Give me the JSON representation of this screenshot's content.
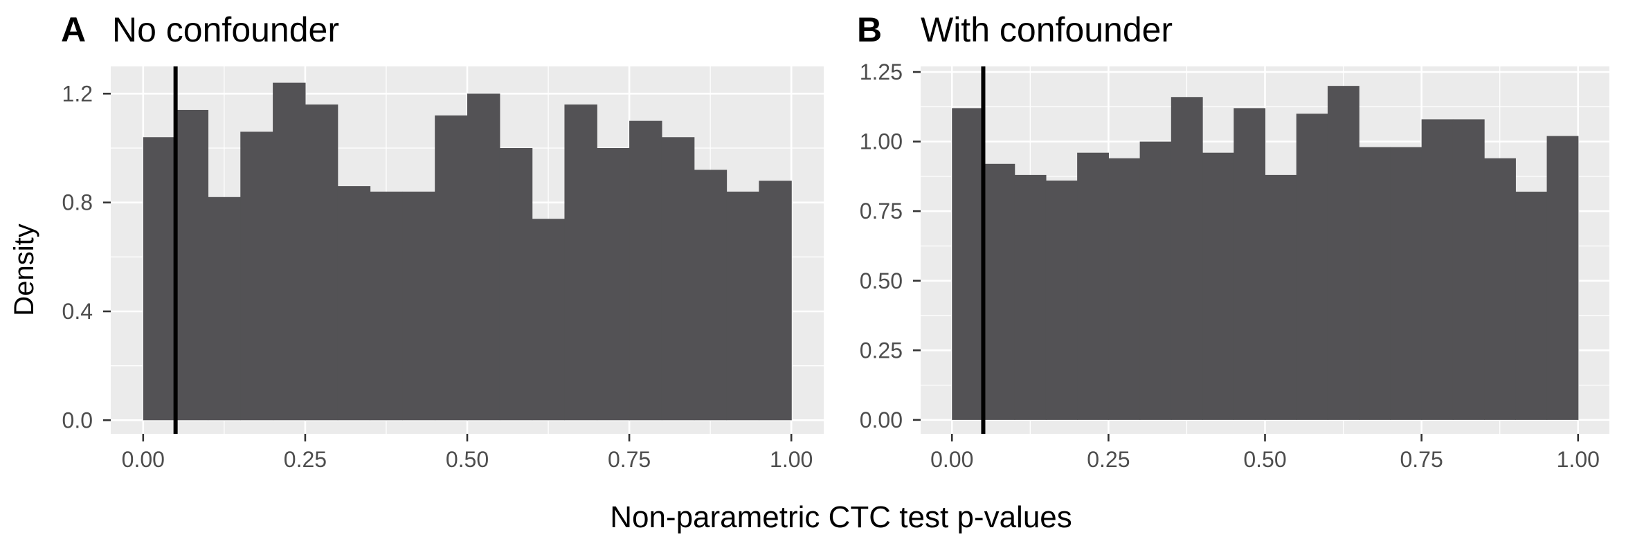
{
  "figure": {
    "xlabel": "Non-parametric CTC test p-values",
    "ylabel": "Density"
  },
  "chart_data": [
    {
      "type": "bar",
      "tag": "A",
      "title": "No confounder",
      "xlabel": "Non-parametric CTC test p-values",
      "ylabel": "Density",
      "xlim": [
        -0.05,
        1.05
      ],
      "ylim": [
        -0.05,
        1.3
      ],
      "bin_width": 0.05,
      "bin_starts": [
        0.0,
        0.05,
        0.1,
        0.15,
        0.2,
        0.25,
        0.3,
        0.35,
        0.4,
        0.45,
        0.5,
        0.55,
        0.6,
        0.65,
        0.7,
        0.75,
        0.8,
        0.85,
        0.9,
        0.95
      ],
      "values": [
        1.04,
        1.14,
        0.82,
        1.06,
        1.24,
        1.16,
        0.86,
        0.84,
        0.84,
        1.12,
        1.2,
        1.0,
        0.74,
        1.16,
        1.0,
        1.1,
        1.04,
        0.92,
        0.84,
        0.88
      ],
      "vline": 0.05,
      "x_ticks": [
        0.0,
        0.25,
        0.5,
        0.75,
        1.0
      ],
      "x_tick_labels": [
        "0.00",
        "0.25",
        "0.50",
        "0.75",
        "1.00"
      ],
      "y_ticks": [
        0.0,
        0.4,
        0.8,
        1.2
      ],
      "y_tick_labels": [
        "0.0",
        "0.4",
        "0.8",
        "1.2"
      ],
      "grid": true
    },
    {
      "type": "bar",
      "tag": "B",
      "title": "With confounder",
      "xlabel": "Non-parametric CTC test p-values",
      "ylabel": "Density",
      "xlim": [
        -0.05,
        1.05
      ],
      "ylim": [
        -0.05,
        1.27
      ],
      "bin_width": 0.05,
      "bin_starts": [
        0.0,
        0.05,
        0.1,
        0.15,
        0.2,
        0.25,
        0.3,
        0.35,
        0.4,
        0.45,
        0.5,
        0.55,
        0.6,
        0.65,
        0.7,
        0.75,
        0.8,
        0.85,
        0.9,
        0.95
      ],
      "values": [
        1.12,
        0.92,
        0.88,
        0.86,
        0.96,
        0.94,
        1.0,
        1.16,
        0.96,
        1.12,
        0.88,
        1.1,
        1.2,
        0.98,
        0.98,
        1.08,
        1.08,
        0.94,
        0.82,
        1.02
      ],
      "vline": 0.05,
      "x_ticks": [
        0.0,
        0.25,
        0.5,
        0.75,
        1.0
      ],
      "x_tick_labels": [
        "0.00",
        "0.25",
        "0.50",
        "0.75",
        "1.00"
      ],
      "y_ticks": [
        0.0,
        0.25,
        0.5,
        0.75,
        1.0,
        1.25
      ],
      "y_tick_labels": [
        "0.00",
        "0.25",
        "0.50",
        "0.75",
        "1.00",
        "1.25"
      ],
      "grid": true
    }
  ],
  "colors": {
    "bar": "#535255",
    "panel_background": "#ebebeb",
    "grid": "#ffffff",
    "vline": "#000000"
  }
}
